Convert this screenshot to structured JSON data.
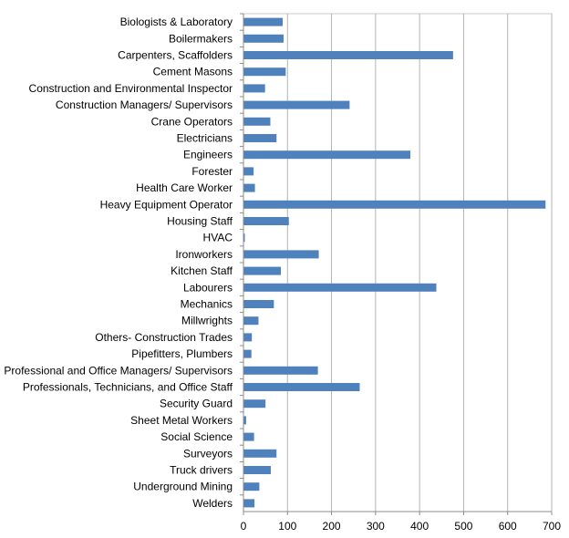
{
  "chart_data": {
    "type": "bar",
    "orientation": "horizontal",
    "categories": [
      "Biologists & Laboratory",
      "Boilermakers",
      "Carpenters, Scaffolders",
      "Cement Masons",
      "Construction and Environmental Inspector",
      "Construction Managers/ Supervisors",
      "Crane Operators",
      "Electricians",
      "Engineers",
      "Forester",
      "Health Care Worker",
      "Heavy Equipment Operator",
      "Housing Staff",
      "HVAC",
      "Ironworkers",
      "Kitchen Staff",
      "Labourers",
      "Mechanics",
      "Millwrights",
      "Others- Construction Trades",
      "Pipefitters, Plumbers",
      "Professional and Office Managers/ Supervisors",
      "Professionals, Technicians, and Office Staff",
      "Security Guard",
      "Sheet Metal Workers",
      "Social Science",
      "Surveyors",
      "Truck drivers",
      "Underground Mining",
      "Welders"
    ],
    "values": [
      88,
      90,
      475,
      95,
      48,
      240,
      60,
      74,
      378,
      22,
      25,
      685,
      102,
      2,
      170,
      84,
      437,
      68,
      33,
      18,
      17,
      168,
      263,
      49,
      5,
      23,
      74,
      61,
      35,
      24
    ],
    "xlim": [
      0,
      700
    ],
    "xticks": [
      "0",
      "100",
      "200",
      "300",
      "400",
      "500",
      "600",
      "700"
    ],
    "grid": "vertical",
    "bar_color": "#4f81bd",
    "gridline_color": "#b3b3b3",
    "axis_color": "#8c8c8c"
  }
}
